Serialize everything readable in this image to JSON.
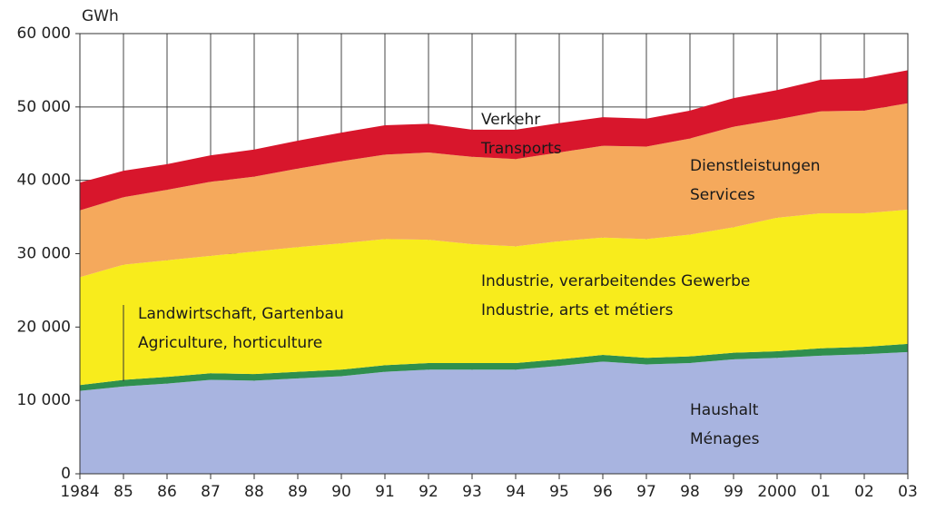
{
  "chart_data": {
    "type": "stacked_area",
    "y_label": "GWh",
    "categories": [
      "1984",
      "85",
      "86",
      "87",
      "88",
      "89",
      "90",
      "91",
      "92",
      "93",
      "94",
      "95",
      "96",
      "97",
      "98",
      "99",
      "2000",
      "01",
      "02",
      "03"
    ],
    "ylim": [
      0,
      60000
    ],
    "yticks": [
      0,
      {
        "value": 10000,
        "label": "10 000"
      },
      {
        "value": 20000,
        "label": "20 000"
      },
      {
        "value": 30000,
        "label": "30 000"
      },
      {
        "value": 40000,
        "label": "40 000"
      },
      {
        "value": 50000,
        "label": "50 000"
      },
      {
        "value": 60000,
        "label": "60 000"
      }
    ],
    "grid": true,
    "series": [
      {
        "name": "Haushalt",
        "subname": "Ménages",
        "color": "#a8b4e0",
        "values": [
          11300,
          11900,
          12300,
          12800,
          12700,
          13000,
          13300,
          13900,
          14200,
          14200,
          14200,
          14700,
          15300,
          14900,
          15100,
          15600,
          15800,
          16100,
          16300,
          16600
        ]
      },
      {
        "name": "Landwirtschaft, Gartenbau",
        "subname": "Agriculture, horticulture",
        "color": "#2f8f4e",
        "values": [
          800,
          900,
          900,
          900,
          900,
          900,
          900,
          900,
          900,
          900,
          900,
          900,
          900,
          900,
          900,
          900,
          900,
          1000,
          1000,
          1100
        ]
      },
      {
        "name": "Industrie, verarbeitendes Gewerbe",
        "subname": "Industrie, arts et métiers",
        "color": "#f8ec1c",
        "values": [
          14700,
          15700,
          15900,
          16000,
          16700,
          17000,
          17200,
          17200,
          16800,
          16200,
          15900,
          16100,
          16000,
          16200,
          16600,
          17100,
          18200,
          18400,
          18200,
          18300
        ]
      },
      {
        "name": "Dienstleistungen",
        "subname": "Services",
        "color": "#f5a95c",
        "values": [
          9100,
          9200,
          9600,
          10100,
          10200,
          10700,
          11200,
          11500,
          11900,
          11900,
          11900,
          12100,
          12500,
          12600,
          13100,
          13700,
          13400,
          13900,
          14000,
          14500
        ]
      },
      {
        "name": "Verkehr",
        "subname": "Transports",
        "color": "#d8162c",
        "values": [
          3800,
          3600,
          3500,
          3600,
          3700,
          3800,
          3900,
          4000,
          3900,
          3700,
          4000,
          4000,
          3900,
          3800,
          3800,
          3900,
          4000,
          4300,
          4400,
          4500
        ]
      }
    ]
  }
}
